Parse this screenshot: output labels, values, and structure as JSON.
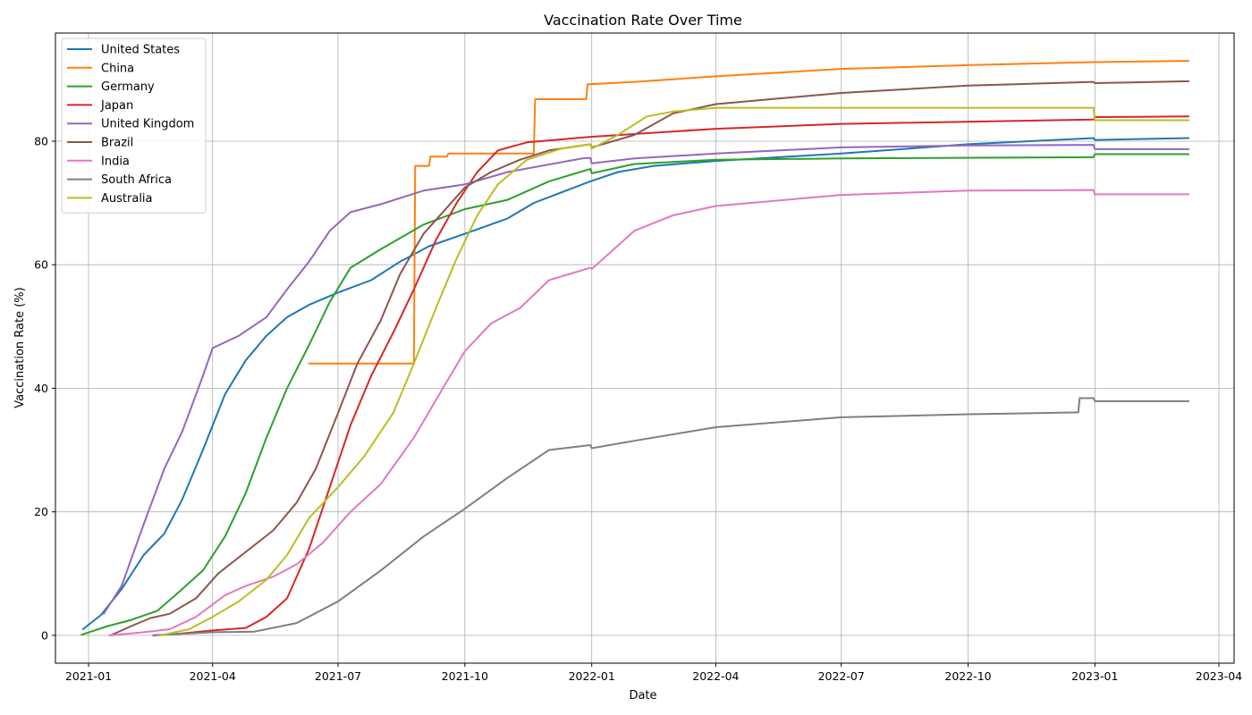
{
  "chart_data": {
    "type": "line",
    "title": "Vaccination Rate Over Time",
    "xlabel": "Date",
    "ylabel": "Vaccination Rate (%)",
    "xlim": [
      "2020-12-08",
      "2023-04-12"
    ],
    "ylim": [
      -4.5,
      97.5
    ],
    "grid": true,
    "legend_position": "top-left",
    "x_ticks": [
      "2021-01-01",
      "2021-04-01",
      "2021-07-01",
      "2021-10-01",
      "2022-01-01",
      "2022-04-01",
      "2022-07-01",
      "2022-10-01",
      "2023-01-01",
      "2023-04-01"
    ],
    "x_tick_labels": [
      "2021-01",
      "2021-04",
      "2021-07",
      "2021-10",
      "2022-01",
      "2022-04",
      "2022-07",
      "2022-10",
      "2023-01",
      "2023-04"
    ],
    "y_ticks": [
      0,
      20,
      40,
      60,
      80
    ],
    "y_tick_labels": [
      "0",
      "20",
      "40",
      "60",
      "80"
    ],
    "series": [
      {
        "name": "United States",
        "color": "#1f77b4",
        "points": [
          [
            "2020-12-28",
            1.0
          ],
          [
            "2021-01-10",
            3.3
          ],
          [
            "2021-01-25",
            7.5
          ],
          [
            "2021-02-10",
            13.0
          ],
          [
            "2021-02-25",
            16.5
          ],
          [
            "2021-03-10",
            22.0
          ],
          [
            "2021-03-25",
            30.0
          ],
          [
            "2021-04-10",
            39.0
          ],
          [
            "2021-04-25",
            44.5
          ],
          [
            "2021-05-10",
            48.5
          ],
          [
            "2021-05-25",
            51.5
          ],
          [
            "2021-06-10",
            53.5
          ],
          [
            "2021-07-01",
            55.5
          ],
          [
            "2021-07-25",
            57.5
          ],
          [
            "2021-08-15",
            60.5
          ],
          [
            "2021-09-05",
            63.0
          ],
          [
            "2021-10-01",
            65.0
          ],
          [
            "2021-11-01",
            67.5
          ],
          [
            "2021-11-20",
            70.0
          ],
          [
            "2021-12-31",
            73.5
          ],
          [
            "2022-01-20",
            75.0
          ],
          [
            "2022-02-15",
            76.0
          ],
          [
            "2022-04-01",
            76.8
          ],
          [
            "2022-07-01",
            78.0
          ],
          [
            "2022-10-01",
            79.5
          ],
          [
            "2022-12-31",
            80.5
          ],
          [
            "2023-01-01",
            80.2
          ],
          [
            "2023-03-10",
            80.5
          ]
        ]
      },
      {
        "name": "China",
        "color": "#ff7f0e",
        "points": [
          [
            "2021-06-10",
            44.0
          ],
          [
            "2021-08-25",
            44.0
          ],
          [
            "2021-08-26",
            76.0
          ],
          [
            "2021-09-05",
            76.0
          ],
          [
            "2021-09-06",
            77.5
          ],
          [
            "2021-09-18",
            77.5
          ],
          [
            "2021-09-19",
            78.0
          ],
          [
            "2021-11-20",
            78.0
          ],
          [
            "2021-11-21",
            86.8
          ],
          [
            "2021-12-28",
            86.8
          ],
          [
            "2021-12-29",
            89.2
          ],
          [
            "2022-02-01",
            89.6
          ],
          [
            "2022-04-01",
            90.5
          ],
          [
            "2022-07-01",
            91.7
          ],
          [
            "2022-10-01",
            92.3
          ],
          [
            "2022-12-31",
            92.8
          ],
          [
            "2023-03-10",
            93.0
          ]
        ]
      },
      {
        "name": "Germany",
        "color": "#2ca02c",
        "points": [
          [
            "2020-12-27",
            0.1
          ],
          [
            "2021-01-15",
            1.5
          ],
          [
            "2021-02-01",
            2.5
          ],
          [
            "2021-02-20",
            4.0
          ],
          [
            "2021-03-10",
            7.5
          ],
          [
            "2021-03-25",
            10.5
          ],
          [
            "2021-04-10",
            16.0
          ],
          [
            "2021-04-25",
            23.0
          ],
          [
            "2021-05-10",
            32.0
          ],
          [
            "2021-05-25",
            40.0
          ],
          [
            "2021-06-10",
            47.0
          ],
          [
            "2021-06-25",
            54.0
          ],
          [
            "2021-07-10",
            59.5
          ],
          [
            "2021-08-01",
            62.5
          ],
          [
            "2021-09-01",
            66.5
          ],
          [
            "2021-10-01",
            69.0
          ],
          [
            "2021-11-01",
            70.5
          ],
          [
            "2021-12-01",
            73.5
          ],
          [
            "2021-12-31",
            75.5
          ],
          [
            "2022-01-01",
            74.8
          ],
          [
            "2022-02-01",
            76.3
          ],
          [
            "2022-04-01",
            77.0
          ],
          [
            "2022-07-01",
            77.2
          ],
          [
            "2022-12-31",
            77.4
          ],
          [
            "2023-01-01",
            77.9
          ],
          [
            "2023-03-10",
            77.9
          ]
        ]
      },
      {
        "name": "Japan",
        "color": "#d62728",
        "points": [
          [
            "2021-02-17",
            0.0
          ],
          [
            "2021-03-10",
            0.3
          ],
          [
            "2021-04-01",
            0.8
          ],
          [
            "2021-04-25",
            1.2
          ],
          [
            "2021-05-10",
            3.0
          ],
          [
            "2021-05-25",
            6.0
          ],
          [
            "2021-06-10",
            14.0
          ],
          [
            "2021-06-25",
            24.0
          ],
          [
            "2021-07-10",
            34.0
          ],
          [
            "2021-07-25",
            42.0
          ],
          [
            "2021-08-10",
            49.0
          ],
          [
            "2021-08-25",
            56.0
          ],
          [
            "2021-09-10",
            64.0
          ],
          [
            "2021-09-25",
            70.0
          ],
          [
            "2021-10-10",
            75.0
          ],
          [
            "2021-10-25",
            78.5
          ],
          [
            "2021-11-15",
            79.8
          ],
          [
            "2021-12-31",
            80.7
          ],
          [
            "2022-04-01",
            82.0
          ],
          [
            "2022-07-01",
            82.8
          ],
          [
            "2022-12-31",
            83.5
          ],
          [
            "2023-01-01",
            83.9
          ],
          [
            "2023-03-10",
            84.0
          ]
        ]
      },
      {
        "name": "United Kingdom",
        "color": "#9467bd",
        "points": [
          [
            "2021-01-12",
            3.5
          ],
          [
            "2021-01-25",
            8.0
          ],
          [
            "2021-02-10",
            18.0
          ],
          [
            "2021-02-25",
            27.0
          ],
          [
            "2021-03-10",
            33.0
          ],
          [
            "2021-03-25",
            42.0
          ],
          [
            "2021-04-01",
            46.5
          ],
          [
            "2021-04-20",
            48.5
          ],
          [
            "2021-05-10",
            51.5
          ],
          [
            "2021-05-25",
            56.0
          ],
          [
            "2021-06-10",
            60.5
          ],
          [
            "2021-06-25",
            65.5
          ],
          [
            "2021-07-10",
            68.5
          ],
          [
            "2021-08-01",
            69.8
          ],
          [
            "2021-09-01",
            72.0
          ],
          [
            "2021-10-01",
            73.0
          ],
          [
            "2021-11-01",
            75.0
          ],
          [
            "2021-12-25",
            77.2
          ],
          [
            "2021-12-31",
            77.3
          ],
          [
            "2022-01-01",
            76.4
          ],
          [
            "2022-02-01",
            77.2
          ],
          [
            "2022-04-01",
            78.0
          ],
          [
            "2022-07-01",
            79.0
          ],
          [
            "2022-10-01",
            79.3
          ],
          [
            "2022-12-31",
            79.4
          ],
          [
            "2023-01-01",
            78.7
          ],
          [
            "2023-03-10",
            78.7
          ]
        ]
      },
      {
        "name": "Brazil",
        "color": "#8c564b",
        "points": [
          [
            "2021-01-17",
            0.0
          ],
          [
            "2021-02-01",
            1.5
          ],
          [
            "2021-02-15",
            2.8
          ],
          [
            "2021-03-01",
            3.5
          ],
          [
            "2021-03-20",
            6.0
          ],
          [
            "2021-04-05",
            10.0
          ],
          [
            "2021-04-25",
            13.5
          ],
          [
            "2021-05-15",
            17.0
          ],
          [
            "2021-06-01",
            21.5
          ],
          [
            "2021-06-15",
            27.0
          ],
          [
            "2021-07-01",
            36.0
          ],
          [
            "2021-07-15",
            44.0
          ],
          [
            "2021-08-01",
            51.0
          ],
          [
            "2021-08-15",
            58.5
          ],
          [
            "2021-09-01",
            65.0
          ],
          [
            "2021-09-15",
            68.5
          ],
          [
            "2021-10-01",
            72.5
          ],
          [
            "2021-10-20",
            75.0
          ],
          [
            "2021-11-10",
            77.0
          ],
          [
            "2021-12-01",
            78.5
          ],
          [
            "2021-12-31",
            79.5
          ],
          [
            "2022-01-01",
            79.0
          ],
          [
            "2022-02-01",
            81.0
          ],
          [
            "2022-03-01",
            84.5
          ],
          [
            "2022-04-01",
            86.0
          ],
          [
            "2022-07-01",
            87.8
          ],
          [
            "2022-10-01",
            89.0
          ],
          [
            "2022-12-31",
            89.6
          ],
          [
            "2023-01-01",
            89.4
          ],
          [
            "2023-03-10",
            89.7
          ]
        ]
      },
      {
        "name": "India",
        "color": "#e377c2",
        "points": [
          [
            "2021-01-16",
            0.0
          ],
          [
            "2021-02-10",
            0.5
          ],
          [
            "2021-03-01",
            1.0
          ],
          [
            "2021-03-20",
            3.0
          ],
          [
            "2021-04-10",
            6.5
          ],
          [
            "2021-04-25",
            8.0
          ],
          [
            "2021-05-15",
            9.5
          ],
          [
            "2021-06-01",
            11.5
          ],
          [
            "2021-06-20",
            15.0
          ],
          [
            "2021-07-10",
            20.0
          ],
          [
            "2021-08-01",
            24.5
          ],
          [
            "2021-08-25",
            32.0
          ],
          [
            "2021-09-15",
            40.0
          ],
          [
            "2021-10-01",
            46.0
          ],
          [
            "2021-10-20",
            50.5
          ],
          [
            "2021-11-10",
            53.0
          ],
          [
            "2021-12-01",
            57.5
          ],
          [
            "2021-12-31",
            59.5
          ],
          [
            "2022-01-01",
            59.3
          ],
          [
            "2022-02-01",
            65.5
          ],
          [
            "2022-03-01",
            68.0
          ],
          [
            "2022-04-01",
            69.5
          ],
          [
            "2022-07-01",
            71.3
          ],
          [
            "2022-10-01",
            72.0
          ],
          [
            "2022-12-31",
            72.1
          ],
          [
            "2023-01-01",
            71.4
          ],
          [
            "2023-03-10",
            71.4
          ]
        ]
      },
      {
        "name": "South Africa",
        "color": "#7f7f7f",
        "points": [
          [
            "2021-02-17",
            0.0
          ],
          [
            "2021-04-01",
            0.5
          ],
          [
            "2021-05-01",
            0.6
          ],
          [
            "2021-06-01",
            2.0
          ],
          [
            "2021-07-01",
            5.5
          ],
          [
            "2021-08-01",
            10.5
          ],
          [
            "2021-09-01",
            16.0
          ],
          [
            "2021-10-01",
            20.5
          ],
          [
            "2021-11-01",
            25.5
          ],
          [
            "2021-12-01",
            30.0
          ],
          [
            "2021-12-31",
            30.8
          ],
          [
            "2022-01-01",
            30.3
          ],
          [
            "2022-02-01",
            31.5
          ],
          [
            "2022-04-01",
            33.7
          ],
          [
            "2022-07-01",
            35.3
          ],
          [
            "2022-10-01",
            35.8
          ],
          [
            "2022-12-20",
            36.1
          ],
          [
            "2022-12-21",
            38.4
          ],
          [
            "2022-12-31",
            38.4
          ],
          [
            "2023-01-01",
            37.9
          ],
          [
            "2023-03-10",
            37.9
          ]
        ]
      },
      {
        "name": "Australia",
        "color": "#bcbd22",
        "points": [
          [
            "2021-02-22",
            0.0
          ],
          [
            "2021-03-15",
            1.0
          ],
          [
            "2021-04-01",
            3.0
          ],
          [
            "2021-04-20",
            5.5
          ],
          [
            "2021-05-10",
            9.0
          ],
          [
            "2021-05-25",
            13.0
          ],
          [
            "2021-06-10",
            19.0
          ],
          [
            "2021-07-01",
            24.0
          ],
          [
            "2021-07-20",
            29.0
          ],
          [
            "2021-08-10",
            36.0
          ],
          [
            "2021-08-25",
            44.0
          ],
          [
            "2021-09-10",
            53.0
          ],
          [
            "2021-09-25",
            61.0
          ],
          [
            "2021-10-10",
            68.0
          ],
          [
            "2021-10-25",
            73.0
          ],
          [
            "2021-11-15",
            77.0
          ],
          [
            "2021-12-10",
            78.8
          ],
          [
            "2021-12-31",
            79.5
          ],
          [
            "2022-01-01",
            78.8
          ],
          [
            "2022-01-20",
            81.0
          ],
          [
            "2022-02-10",
            84.0
          ],
          [
            "2022-03-01",
            84.8
          ],
          [
            "2022-04-01",
            85.4
          ],
          [
            "2022-12-31",
            85.4
          ],
          [
            "2023-01-01",
            83.4
          ],
          [
            "2023-03-10",
            83.4
          ]
        ]
      }
    ]
  }
}
